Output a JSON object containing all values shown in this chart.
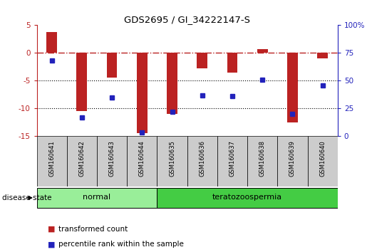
{
  "title": "GDS2695 / GI_34222147-S",
  "samples": [
    "GSM160641",
    "GSM160642",
    "GSM160643",
    "GSM160644",
    "GSM160635",
    "GSM160636",
    "GSM160637",
    "GSM160638",
    "GSM160639",
    "GSM160640"
  ],
  "bar_values": [
    3.8,
    -10.5,
    -4.5,
    -14.5,
    -11.0,
    -2.8,
    -3.5,
    0.7,
    -12.5,
    -1.0
  ],
  "dot_values": [
    68,
    17,
    35,
    3,
    22,
    37,
    36,
    51,
    20,
    46
  ],
  "ylim_left": [
    -15,
    5
  ],
  "ylim_right": [
    0,
    100
  ],
  "yticks_left": [
    -15,
    -10,
    -5,
    0,
    5
  ],
  "yticks_right": [
    0,
    25,
    50,
    75,
    100
  ],
  "bar_color": "#BB2222",
  "dot_color": "#2222BB",
  "dotted_hlines": [
    -5,
    -10
  ],
  "groups": [
    {
      "label": "normal",
      "indices": [
        0,
        3
      ],
      "color": "#99EE99"
    },
    {
      "label": "teratozoospermia",
      "indices": [
        4,
        9
      ],
      "color": "#44CC44"
    }
  ],
  "disease_state_label": "disease state",
  "legend_bar_label": "transformed count",
  "legend_dot_label": "percentile rank within the sample",
  "bar_width": 0.35
}
